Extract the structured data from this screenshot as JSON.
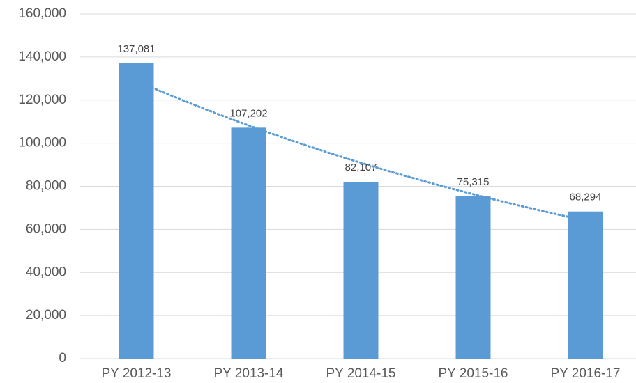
{
  "chart_data": {
    "type": "bar",
    "categories": [
      "PY 2012-13",
      "PY 2013-14",
      "PY 2014-15",
      "PY 2015-16",
      "PY 2016-17"
    ],
    "values": [
      137081,
      107202,
      82107,
      75315,
      68294
    ],
    "value_labels": [
      "137,081",
      "107,202",
      "82,107",
      "75,315",
      "68,294"
    ],
    "color": "#5b9bd5",
    "ylim": [
      0,
      160000
    ],
    "yticks": [
      0,
      {
        "value": 20000,
        "label": "20,000"
      },
      {
        "value": 40000,
        "label": "40,000"
      },
      {
        "value": 60000,
        "label": "60,000"
      },
      {
        "value": 80000,
        "label": "80,000"
      },
      {
        "value": 100000,
        "label": "100,000"
      },
      {
        "value": 120000,
        "label": "120,000"
      },
      {
        "value": 140000,
        "label": "140,000"
      },
      {
        "value": 160000,
        "label": "160,000"
      }
    ],
    "grid": true,
    "trendline": "exponential"
  }
}
